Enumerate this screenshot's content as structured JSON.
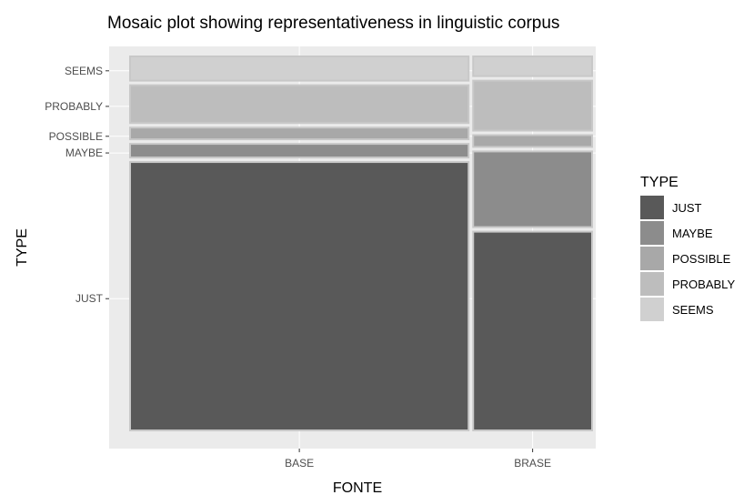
{
  "chart_data": {
    "type": "mosaic",
    "title": "Mosaic plot showing representativeness in linguistic corpus",
    "xlabel": "FONTE",
    "ylabel": "TYPE",
    "categories": [
      "BASE",
      "BRASE"
    ],
    "category_widths": [
      0.74,
      0.26
    ],
    "stack_order": [
      "JUST",
      "MAYBE",
      "POSSIBLE",
      "PROBABLY",
      "SEEMS"
    ],
    "segments": {
      "BASE": {
        "JUST": 0.721,
        "MAYBE": 0.048,
        "POSSIBLE": 0.043,
        "PROBABLY": 0.112,
        "SEEMS": 0.076
      },
      "BRASE": {
        "JUST": 0.537,
        "MAYBE": 0.212,
        "POSSIBLE": 0.043,
        "PROBABLY": 0.144,
        "SEEMS": 0.064
      }
    },
    "y_ticks": [
      {
        "label": "SEEMS",
        "value": 0.962
      },
      {
        "label": "PROBABLY",
        "value": 0.868
      },
      {
        "label": "POSSIBLE",
        "value": 0.789
      },
      {
        "label": "MAYBE",
        "value": 0.745
      },
      {
        "label": "JUST",
        "value": 0.36
      }
    ],
    "legend": {
      "title": "TYPE",
      "position": "right",
      "entries": [
        "JUST",
        "MAYBE",
        "POSSIBLE",
        "PROBABLY",
        "SEEMS"
      ]
    },
    "colors": {
      "JUST": "#595959",
      "MAYBE": "#8c8c8c",
      "POSSIBLE": "#a8a8a8",
      "PROBABLY": "#bdbdbd",
      "SEEMS": "#d0d0d0",
      "panel_bg": "#ebebeb",
      "grid": "#ffffff",
      "tile_border": "#c8c8c8",
      "text": "#4d4d4d",
      "title_text": "#000000"
    },
    "grid": true
  }
}
